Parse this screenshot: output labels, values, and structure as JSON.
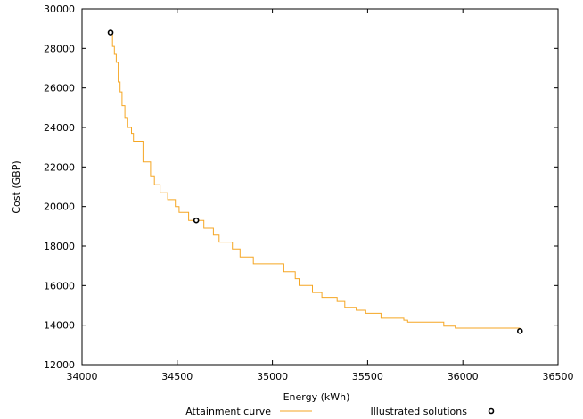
{
  "chart_data": {
    "type": "line",
    "title": "",
    "xlabel": "Energy (kWh)",
    "ylabel": "Cost (GBP)",
    "xlim": [
      34000,
      36500
    ],
    "ylim": [
      12000,
      30000
    ],
    "xticks": [
      34000,
      34500,
      35000,
      35500,
      36000,
      36500
    ],
    "yticks": [
      12000,
      14000,
      16000,
      18000,
      20000,
      22000,
      24000,
      26000,
      28000,
      30000
    ],
    "grid": false,
    "legend_position": "bottom",
    "series": [
      {
        "name": "Attainment curve",
        "kind": "step",
        "color": "#f5a623",
        "points": [
          [
            34150,
            28800
          ],
          [
            34160,
            28100
          ],
          [
            34170,
            27700
          ],
          [
            34180,
            27300
          ],
          [
            34190,
            26300
          ],
          [
            34200,
            25800
          ],
          [
            34210,
            25100
          ],
          [
            34225,
            24500
          ],
          [
            34240,
            24000
          ],
          [
            34260,
            23700
          ],
          [
            34270,
            23300
          ],
          [
            34320,
            22250
          ],
          [
            34360,
            21550
          ],
          [
            34380,
            21100
          ],
          [
            34410,
            20700
          ],
          [
            34450,
            20350
          ],
          [
            34490,
            20000
          ],
          [
            34510,
            19700
          ],
          [
            34560,
            19300
          ],
          [
            34600,
            19300
          ],
          [
            34640,
            18900
          ],
          [
            34690,
            18550
          ],
          [
            34720,
            18200
          ],
          [
            34790,
            17850
          ],
          [
            34830,
            17450
          ],
          [
            34900,
            17100
          ],
          [
            35060,
            16700
          ],
          [
            35120,
            16350
          ],
          [
            35140,
            16000
          ],
          [
            35210,
            15650
          ],
          [
            35260,
            15400
          ],
          [
            35340,
            15200
          ],
          [
            35380,
            14900
          ],
          [
            35440,
            14750
          ],
          [
            35490,
            14600
          ],
          [
            35570,
            14350
          ],
          [
            35690,
            14250
          ],
          [
            35710,
            14150
          ],
          [
            35900,
            13950
          ],
          [
            35960,
            13850
          ],
          [
            36300,
            13850
          ]
        ]
      },
      {
        "name": "Illustrated solutions",
        "kind": "points",
        "color": "#000000",
        "points": [
          [
            34150,
            28800
          ],
          [
            34600,
            19300
          ],
          [
            36300,
            13700
          ]
        ]
      }
    ]
  }
}
